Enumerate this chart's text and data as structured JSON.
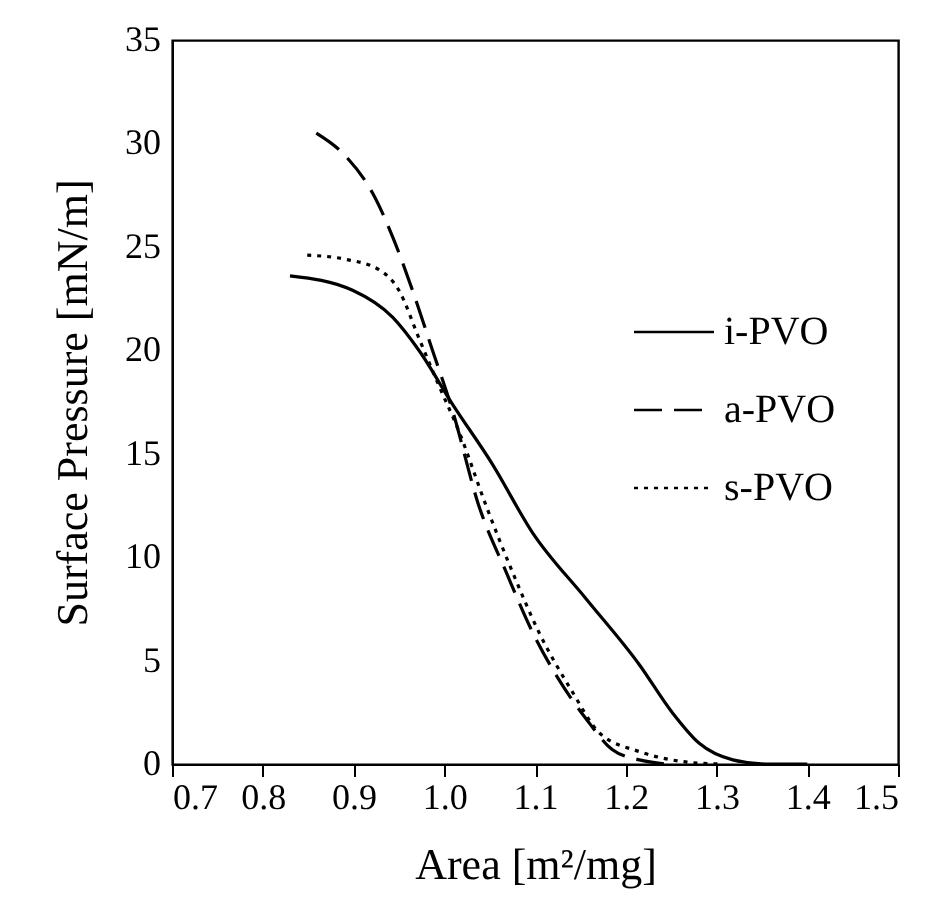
{
  "chart_data": {
    "type": "line",
    "xlabel": "Area [m²/mg]",
    "ylabel": "Surface Pressure [mN/m]",
    "xlim": [
      0.7,
      1.5
    ],
    "xticks": [
      0.7,
      0.8,
      0.9,
      {
        "value": 1,
        "label": "1.0"
      },
      1.1,
      1.2,
      1.3,
      1.4,
      1.5
    ],
    "ylim": [
      0,
      35
    ],
    "yticks": [
      0,
      5,
      10,
      15,
      20,
      25,
      30,
      35
    ],
    "grid": false,
    "legend": "right",
    "marker": "none",
    "series": [
      {
        "name": "i-PVO",
        "color": "#000000",
        "line_style": "solid",
        "x": [
          0.83,
          0.899,
          0.943,
          0.972,
          1.009,
          1.053,
          1.097,
          1.156,
          1.215,
          1.251,
          1.281,
          1.318,
          1.354,
          1.4
        ],
        "values": [
          23.6,
          22.9,
          21.6,
          20.0,
          17.4,
          14.5,
          11.2,
          8.0,
          4.8,
          2.5,
          1.0,
          0.2,
          0,
          0
        ]
      },
      {
        "name": "a-PVO",
        "color": "#000000",
        "line_style": "dashed",
        "x": [
          0.859,
          0.891,
          0.921,
          0.943,
          0.965,
          0.987,
          1.009,
          1.038,
          1.068,
          1.097,
          1.126,
          1.156,
          1.185,
          1.215,
          1.244
        ],
        "values": [
          30.5,
          29.4,
          27.6,
          25.5,
          22.9,
          20.0,
          17.1,
          12.5,
          9.3,
          6.4,
          4.1,
          2.2,
          0.7,
          0.2,
          0
        ]
      },
      {
        "name": "s-PVO",
        "color": "#000000",
        "line_style": "dotted",
        "x": [
          0.849,
          0.891,
          0.928,
          0.95,
          0.972,
          0.994,
          1.016,
          1.046,
          1.075,
          1.104,
          1.141,
          1.171,
          1.215,
          1.266,
          1.303
        ],
        "values": [
          24.6,
          24.4,
          23.9,
          22.9,
          20.6,
          18.3,
          16.1,
          12.5,
          9.3,
          6.4,
          3.5,
          1.5,
          0.6,
          0.1,
          0
        ]
      }
    ]
  }
}
